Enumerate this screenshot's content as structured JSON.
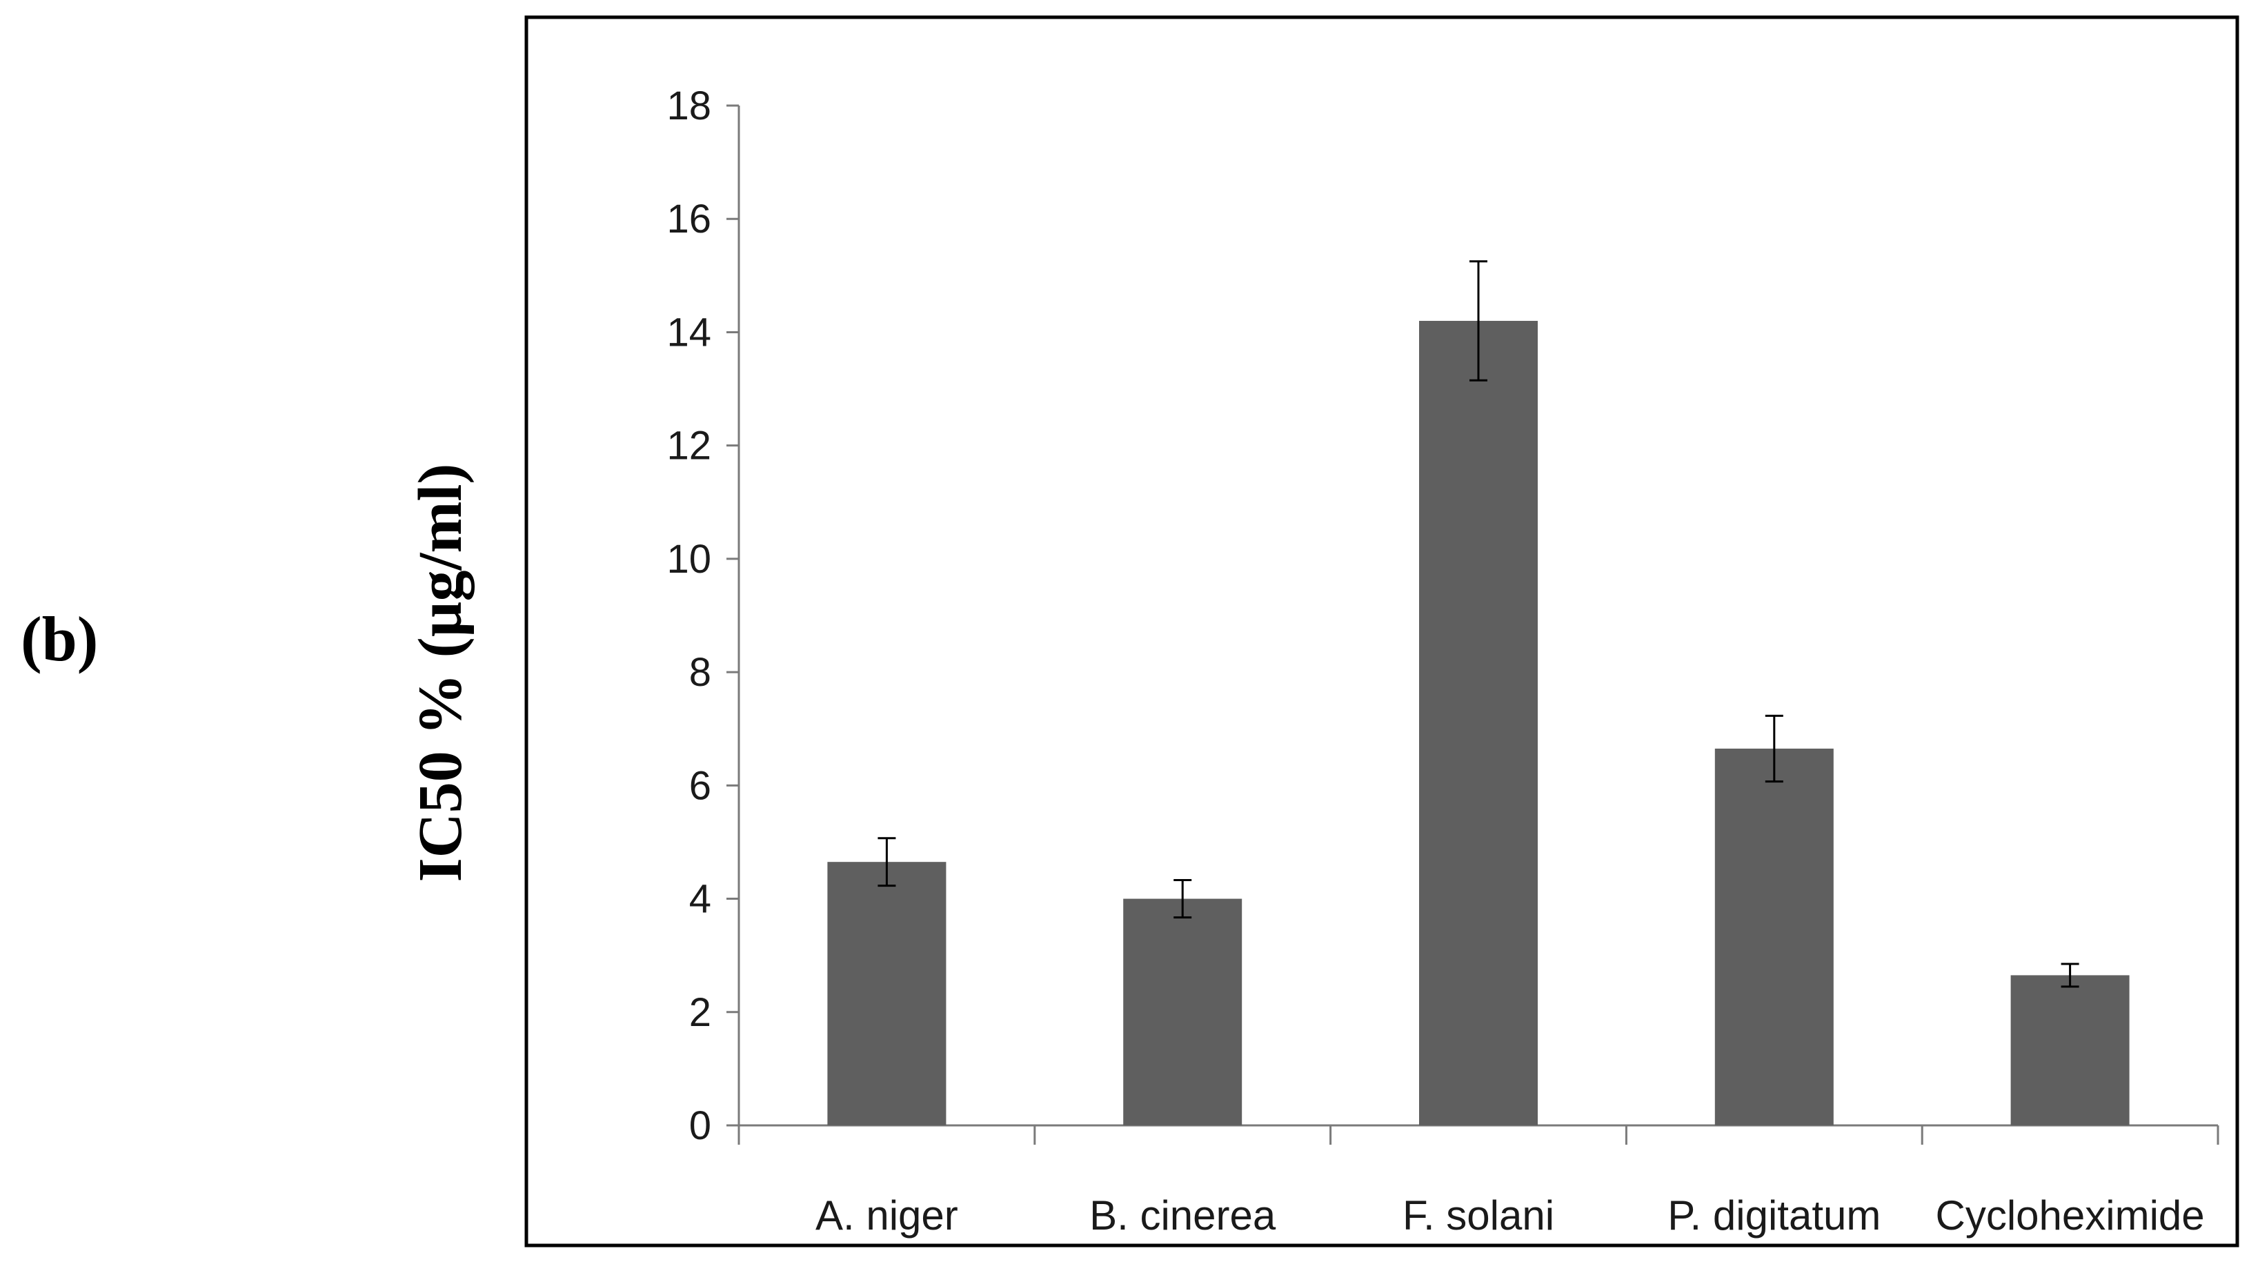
{
  "panel_label": "(b)",
  "chart_data": {
    "type": "bar",
    "title": "",
    "xlabel": "",
    "ylabel": "IC50 % (µg/ml)",
    "ylim": [
      0,
      18
    ],
    "ytick_step": 2,
    "grid": false,
    "legend": "none",
    "categories": [
      "A. niger",
      "B. cinerea",
      "F. solani",
      "P. digitatum",
      "Cycloheximide"
    ],
    "values": [
      4.65,
      4.0,
      14.2,
      6.65,
      2.65
    ],
    "errors": [
      0.42,
      0.33,
      1.05,
      0.58,
      0.2
    ],
    "bar_color": "#5f5f5f"
  }
}
